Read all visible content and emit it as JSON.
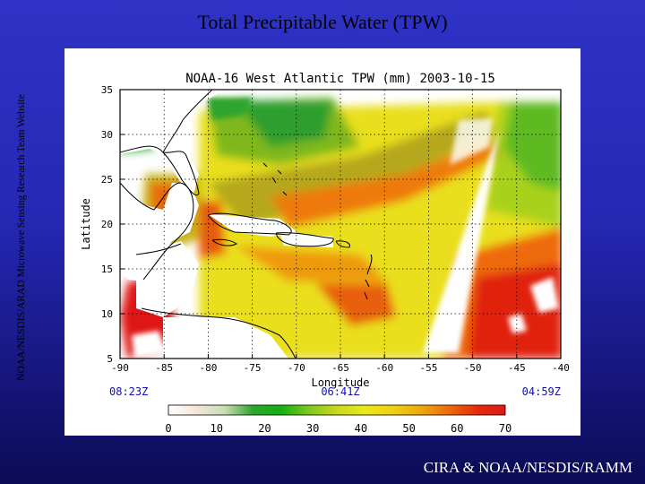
{
  "slide": {
    "title": "Total Precipitable Water (TPW)",
    "side_credit": "NOAA/NESDIS/ARAD Microwave Sensing Research Team Website",
    "bottom_credit": "CIRA & NOAA/NESDIS/RAMM"
  },
  "map": {
    "title": "NOAA-16 West Atlantic TPW (mm) 2003-10-15",
    "ylabel": "Latitude",
    "xlabel": "Longitude",
    "lat_ticks": [
      "35",
      "30",
      "25",
      "20",
      "15",
      "10",
      "5"
    ],
    "lon_ticks": [
      "-90",
      "-85",
      "-80",
      "-75",
      "-70",
      "-65",
      "-60",
      "-55",
      "-50",
      "-45",
      "-40"
    ],
    "times": {
      "left": "08:23Z",
      "center": "06:41Z",
      "right": "04:59Z"
    },
    "colorbar": {
      "ticks": [
        "0",
        "10",
        "20",
        "30",
        "40",
        "50",
        "60",
        "70"
      ],
      "colors": [
        "#ffffff",
        "#f5e6d7",
        "#c9ddb5",
        "#2ea52e",
        "#12b012",
        "#7fc81c",
        "#c9d81a",
        "#eaea18",
        "#f0d012",
        "#f0a80c",
        "#ee6a0a",
        "#e82a0a",
        "#e01818"
      ]
    },
    "grid": true
  }
}
